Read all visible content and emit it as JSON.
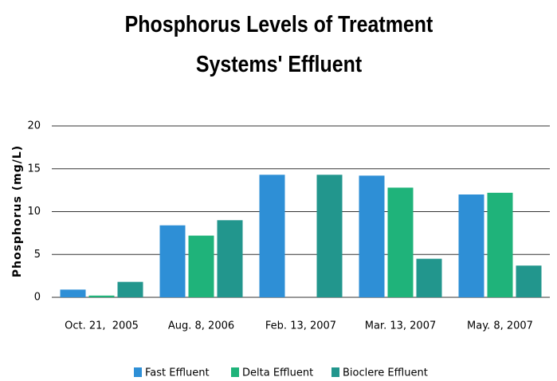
{
  "chart_data": {
    "type": "bar",
    "title": "Phosphorus Levels of Treatment Systems' Effluent",
    "y_label": "Phosphorus (mg/L)",
    "categories": [
      "Oct. 21,  2005",
      "Aug. 8, 2006",
      "Feb. 13, 2007",
      "Mar. 13, 2007",
      "May. 8, 2007"
    ],
    "series": [
      {
        "name": "Fast Effluent",
        "color": "#2e8fd6",
        "values": [
          0.9,
          8.4,
          14.3,
          14.2,
          12.0
        ]
      },
      {
        "name": "Delta Effluent",
        "color": "#1fb37a",
        "values": [
          0.2,
          7.2,
          0,
          12.8,
          12.2
        ]
      },
      {
        "name": "Bioclere Effluent",
        "color": "#22968d",
        "values": [
          1.8,
          9.0,
          14.3,
          4.5,
          3.7
        ]
      }
    ],
    "ylim": [
      0,
      20
    ],
    "yticks": [
      0,
      5,
      10,
      15,
      20
    ],
    "grid": true,
    "legend": "bottom"
  }
}
